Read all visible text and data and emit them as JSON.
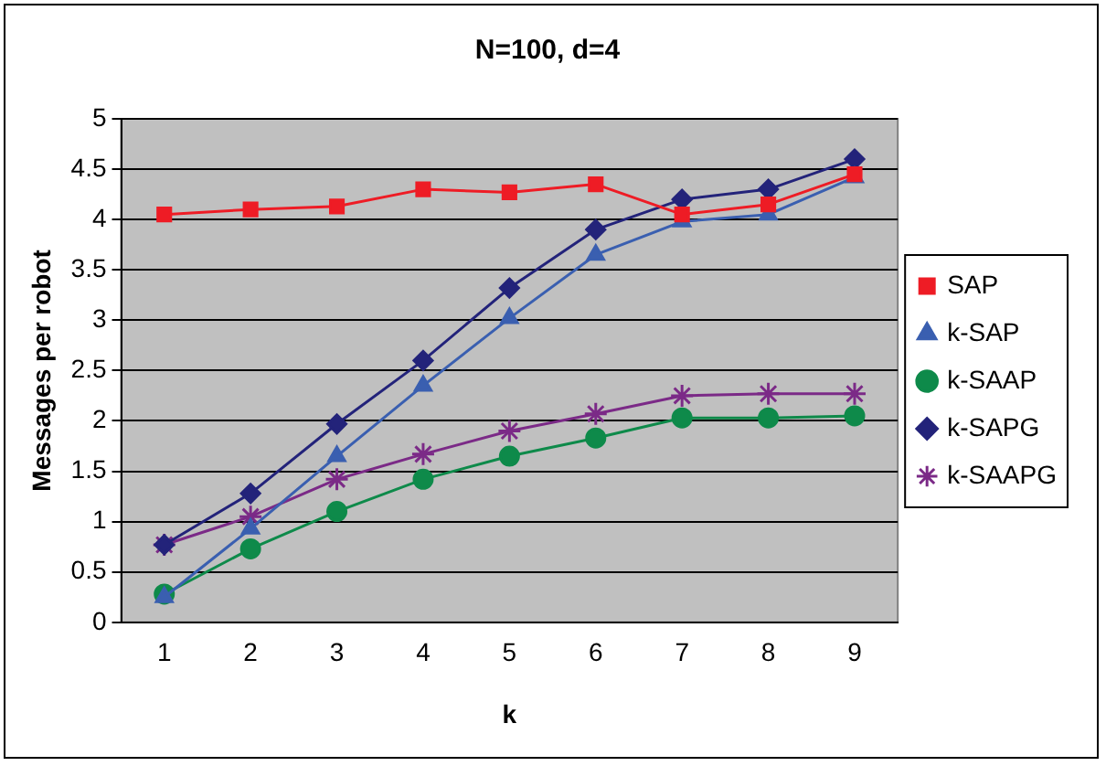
{
  "chart_data": {
    "type": "line",
    "title": "N=100, d=4",
    "xlabel": "k",
    "ylabel": "Messages per robot",
    "categories": [
      "1",
      "2",
      "3",
      "4",
      "5",
      "6",
      "7",
      "8",
      "9"
    ],
    "series": [
      {
        "name": "SAP",
        "color": "#ee1c25",
        "marker": "square",
        "values": [
          4.05,
          4.1,
          4.13,
          4.3,
          4.27,
          4.35,
          4.05,
          4.15,
          4.45
        ]
      },
      {
        "name": "k-SAP",
        "color": "#3a5fb0",
        "marker": "triangle",
        "values": [
          0.25,
          0.93,
          1.65,
          2.35,
          3.02,
          3.65,
          3.98,
          4.05,
          4.42
        ]
      },
      {
        "name": "k-SAAP",
        "color": "#0e8a4a",
        "marker": "circle",
        "values": [
          0.28,
          0.73,
          1.1,
          1.42,
          1.65,
          1.83,
          2.03,
          2.03,
          2.05
        ]
      },
      {
        "name": "k-SAPG",
        "color": "#23237a",
        "marker": "diamond",
        "values": [
          0.77,
          1.28,
          1.97,
          2.6,
          3.32,
          3.9,
          4.2,
          4.3,
          4.6
        ]
      },
      {
        "name": "k-SAAPG",
        "color": "#7b2a87",
        "marker": "cross",
        "values": [
          0.77,
          1.05,
          1.42,
          1.67,
          1.9,
          2.07,
          2.25,
          2.27,
          2.27
        ]
      }
    ],
    "ylim": [
      0,
      5
    ],
    "yticks": [
      0,
      0.5,
      1,
      1.5,
      2,
      2.5,
      3,
      3.5,
      4,
      4.5,
      5
    ],
    "grid": "y",
    "legend": "right",
    "line_style": "solid"
  }
}
